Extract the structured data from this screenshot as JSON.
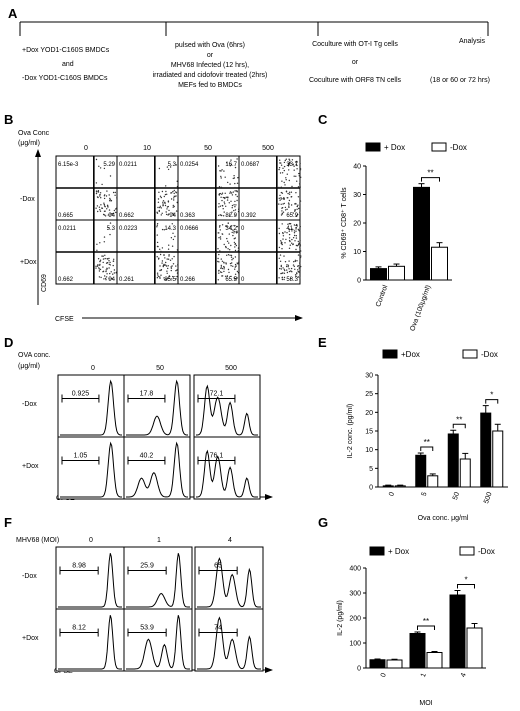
{
  "panel_a": {
    "label": "A",
    "col1_line1": "+Dox YOD1-C160S BMDCs",
    "col1_line2": "and",
    "col1_line3": "-Dox YOD1-C160S  BMDCs",
    "col2_line1": "pulsed with Ova (6hrs)",
    "col2_line2": "or",
    "col2_line3": "MHV68 Infected (12 hrs),",
    "col2_line4": "irradiated and cidofovir treated (2hrs)",
    "col2_line5": "MEFs fed to BMDCs",
    "col3_line1": "Coculture with OT-I Tg cells",
    "col3_line2": "or",
    "col3_line3": "Coculture with ORF8 TN cells",
    "col4_line1": "Analysis",
    "col4_line2": "(18 or 60 or 72 hrs)"
  },
  "panel_b": {
    "label": "B",
    "title_line1": "Ova Conc",
    "title_line2": "(μg/ml)",
    "columns": [
      "0",
      "10",
      "50",
      "500"
    ],
    "row_minus": "-Dox",
    "row_plus": "+Dox",
    "ylabel": "CD69",
    "xlabel": "CFSE",
    "minus": [
      {
        "ul": "6.15e-3",
        "ur": "5.29",
        "ll": "0.665",
        "lr": "94"
      },
      {
        "ul": "0.0211",
        "ur": "5.3",
        "ll": "0.662",
        "lr": "94"
      },
      {
        "ul": "0.0254",
        "ur": "16.7",
        "ll": "0.363",
        "lr": "82.9"
      },
      {
        "ul": "0.0687",
        "ur": "33.7",
        "ll": "0.392",
        "lr": "65.9"
      }
    ],
    "plus": [
      {
        "ul": "0.0211",
        "ur": "5.3",
        "ll": "0.662",
        "lr": "94"
      },
      {
        "ul": "0.0223",
        "ur": "14.3",
        "ll": "0.261",
        "lr": "85.5"
      },
      {
        "ul": "0.0666",
        "ur": "34.2",
        "ll": "0.266",
        "lr": "65.5"
      },
      {
        "ul": "0",
        "ur": "41.7",
        "ll": "0",
        "lr": "58.3"
      }
    ]
  },
  "panel_d": {
    "label": "D",
    "title_line1": "OVA conc.",
    "title_line2": "(μg/ml)",
    "columns": [
      "0",
      "50",
      "500"
    ],
    "row_minus": "-Dox",
    "row_plus": "+Dox",
    "xlabel": "CFSE",
    "minus_values": [
      "0.925",
      "17.8",
      "72.1"
    ],
    "plus_values": [
      "1.05",
      "40.2",
      "76.1"
    ]
  },
  "panel_f": {
    "label": "F",
    "title": "MHV68 (MOI)",
    "columns": [
      "0",
      "1",
      "4"
    ],
    "row_minus": "-Dox",
    "row_plus": "+Dox",
    "xlabel": "CFSE",
    "minus_values": [
      "8.98",
      "25.9",
      "65"
    ],
    "plus_values": [
      "8.12",
      "53.9",
      "74"
    ]
  },
  "chart_data": [
    {
      "panel": "C",
      "type": "bar",
      "legend": [
        "+ Dox",
        "-Dox"
      ],
      "categories": [
        "Control",
        "Ova (100μg/ml)"
      ],
      "series": [
        {
          "name": "+ Dox",
          "values": [
            4,
            32.5
          ],
          "errors": [
            0.6,
            1.3
          ],
          "color": "#000000"
        },
        {
          "name": "-Dox",
          "values": [
            4.8,
            11.5
          ],
          "errors": [
            0.8,
            1.6
          ],
          "color": "#ffffff"
        }
      ],
      "ylabel": "% CD69⁺ CD8⁺ T cells",
      "ylim": [
        0,
        40
      ],
      "yticks": [
        "0",
        "10",
        "20",
        "30",
        "40"
      ],
      "significance": [
        {
          "category": "Ova (100μg/ml)",
          "label": "**"
        }
      ],
      "legend_position": "top"
    },
    {
      "panel": "E",
      "type": "bar",
      "legend": [
        "+Dox",
        "-Dox"
      ],
      "categories": [
        "0",
        "5",
        "50",
        "500"
      ],
      "series": [
        {
          "name": "+Dox",
          "values": [
            0.3,
            8.5,
            14.2,
            19.8
          ],
          "errors": [
            0.2,
            0.6,
            1.0,
            2.0
          ],
          "color": "#000000"
        },
        {
          "name": "-Dox",
          "values": [
            0.3,
            3.0,
            7.5,
            15.0
          ],
          "errors": [
            0.2,
            0.5,
            1.5,
            1.8
          ],
          "color": "#ffffff"
        }
      ],
      "xlabel": "Ova conc. μg/ml",
      "ylabel": "IL-2 conc. (pg/ml)",
      "ylim": [
        0,
        30
      ],
      "yticks": [
        "0",
        "5",
        "10",
        "15",
        "20",
        "25",
        "30"
      ],
      "significance": [
        {
          "category": "5",
          "label": "**"
        },
        {
          "category": "50",
          "label": "**"
        },
        {
          "category": "500",
          "label": "*"
        }
      ],
      "legend_position": "top"
    },
    {
      "panel": "G",
      "type": "bar",
      "legend": [
        "+ Dox",
        "-Dox"
      ],
      "categories": [
        "0",
        "1",
        "4"
      ],
      "series": [
        {
          "name": "+ Dox",
          "values": [
            33,
            138,
            292
          ],
          "errors": [
            3,
            6,
            18
          ],
          "color": "#000000"
        },
        {
          "name": "-Dox",
          "values": [
            32,
            62,
            160
          ],
          "errors": [
            3,
            4,
            18
          ],
          "color": "#ffffff"
        }
      ],
      "xlabel": "MOI",
      "ylabel": "IL-2 (pg/ml)",
      "ylim": [
        0,
        400
      ],
      "yticks": [
        "0",
        "100",
        "200",
        "300",
        "400"
      ],
      "significance": [
        {
          "category": "1",
          "label": "**"
        },
        {
          "category": "4",
          "label": "*"
        }
      ],
      "legend_position": "top"
    }
  ]
}
